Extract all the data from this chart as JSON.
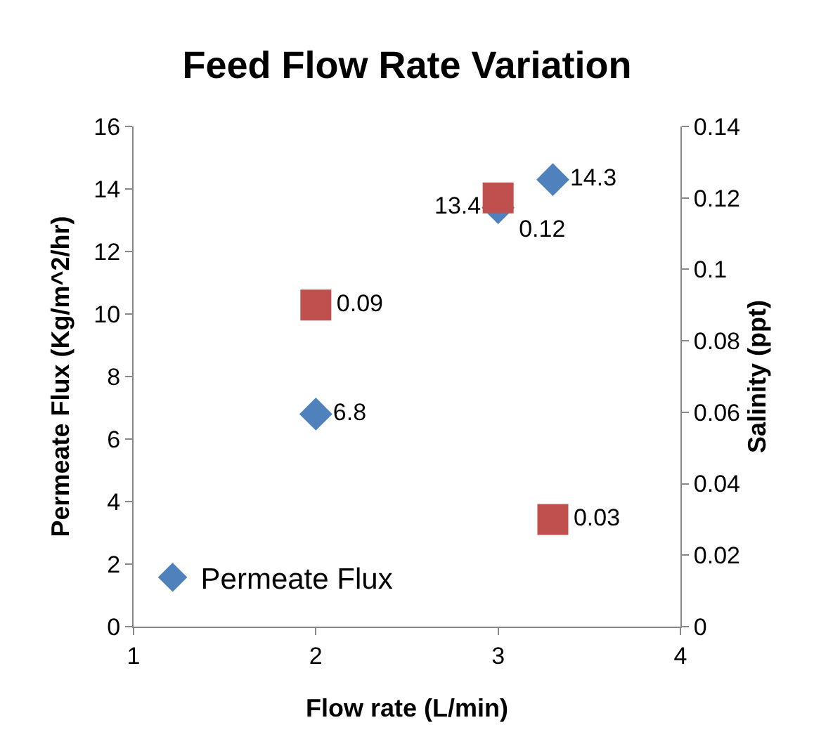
{
  "chart_data": {
    "type": "scatter",
    "title": "Feed Flow Rate Variation",
    "xlabel": "Flow rate (L/min)",
    "ylabel": "Permeate Flux (Kg/m^2/hr)",
    "y2label": "Salinity (ppt)",
    "series": [
      {
        "name": "Permeate Flux",
        "color": "#4f81bd",
        "marker": "diamond",
        "x": [
          2,
          3,
          3.3
        ],
        "values": [
          6.8,
          13.4,
          14.3
        ]
      },
      {
        "color": "#c0504d",
        "marker": "square",
        "axis": "y2",
        "x": [
          2,
          3,
          3.3
        ],
        "values": [
          0.09,
          0.12,
          0.03
        ]
      }
    ],
    "xlim": [
      1,
      4
    ],
    "xticks": [
      1,
      2,
      3,
      4
    ],
    "ylim": [
      0,
      16
    ],
    "yticks": [
      0,
      2,
      4,
      6,
      8,
      10,
      12,
      14,
      16
    ],
    "y2lim": [
      0,
      0.14
    ],
    "y2ticks": [
      0,
      0.02,
      0.04,
      0.06,
      0.08,
      0.1,
      0.12,
      0.14
    ],
    "data_labels": true,
    "grid": false,
    "legend": "bottom left"
  }
}
